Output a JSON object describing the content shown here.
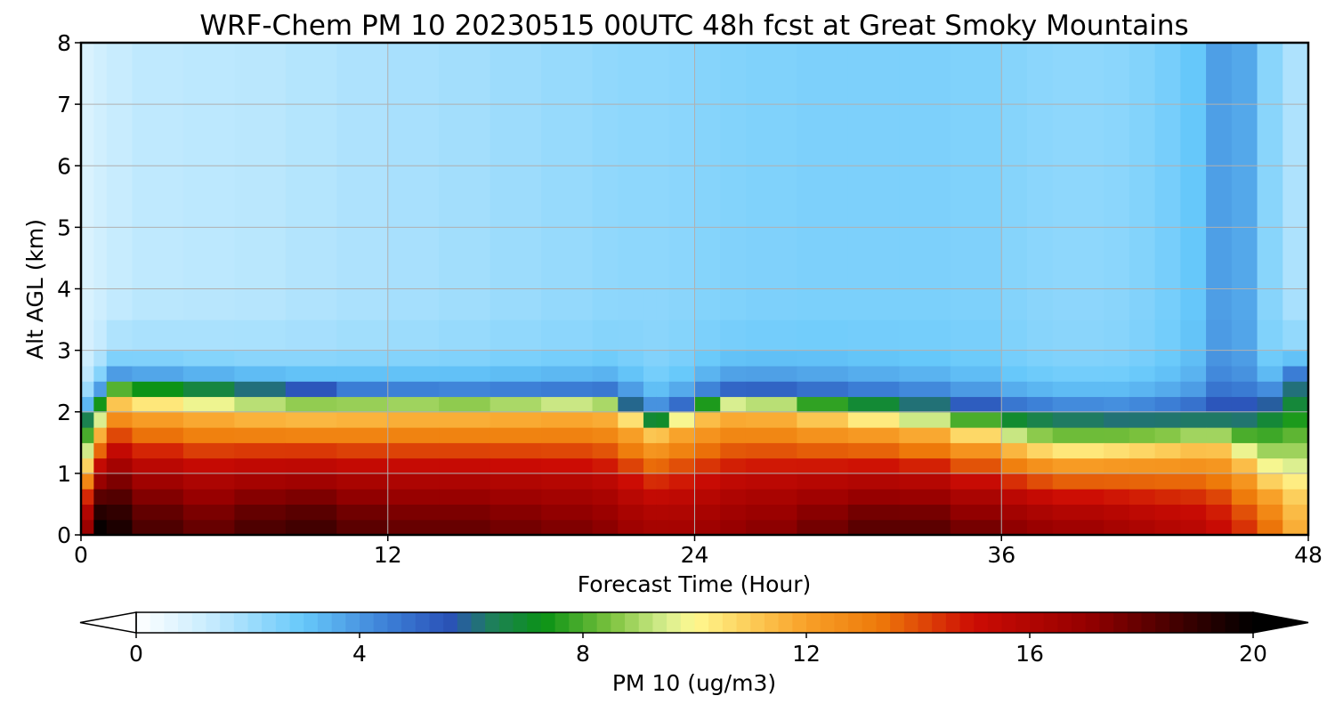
{
  "chart_data": {
    "type": "heatmap",
    "title": "WRF-Chem PM 10  20230515 00UTC 48h fcst at Great Smoky Mountains",
    "xlabel": "Forecast Time (Hour)",
    "ylabel": "Alt AGL (km)",
    "xlim": [
      0,
      48
    ],
    "ylim": [
      0,
      8
    ],
    "x_ticks": [
      "0",
      "12",
      "24",
      "36",
      "48"
    ],
    "y_ticks": [
      "0",
      "1",
      "2",
      "3",
      "4",
      "5",
      "6",
      "7",
      "8"
    ],
    "grid": true,
    "colorbar": {
      "label": "PM 10  (ug/m3)",
      "range": [
        0,
        20
      ],
      "ticks": [
        "0",
        "4",
        "8",
        "12",
        "16",
        "20"
      ],
      "extend": "both",
      "position": "bottom"
    },
    "x": [
      0,
      0.5,
      1,
      2,
      4,
      6,
      8,
      10,
      12,
      14,
      16,
      18,
      20,
      21,
      22,
      22.5,
      23,
      24,
      25,
      26,
      28,
      30,
      32,
      34,
      36,
      37,
      38,
      40,
      41,
      42,
      43,
      44,
      45,
      46,
      47,
      48
    ],
    "y": [
      0,
      0.25,
      0.5,
      0.75,
      1,
      1.25,
      1.5,
      1.75,
      2,
      2.25,
      2.5,
      2.75,
      3,
      3.5,
      4,
      5,
      6,
      7,
      8
    ],
    "boundary_top_km": [
      2.0,
      2.1,
      2.6,
      2.55,
      2.5,
      2.45,
      2.4,
      2.35,
      2.35,
      2.3,
      2.3,
      2.3,
      2.3,
      2.3,
      2.0,
      1.9,
      2.0,
      2.15,
      2.3,
      2.35,
      2.3,
      2.25,
      2.2,
      2.15,
      2.05,
      2.0,
      2.0,
      1.95,
      1.95,
      1.95,
      1.95,
      1.95,
      1.95,
      2.0,
      2.4,
      2.8
    ],
    "mixed_layer_top_km": [
      1.0,
      1.2,
      2.2,
      2.1,
      2.05,
      2.0,
      1.95,
      1.95,
      2.0,
      2.0,
      2.0,
      2.05,
      2.05,
      2.0,
      1.7,
      1.6,
      1.75,
      1.9,
      2.0,
      2.1,
      1.95,
      1.85,
      1.8,
      1.7,
      1.5,
      1.4,
      1.3,
      1.3,
      1.35,
      1.35,
      1.4,
      1.45,
      1.4,
      1.0,
      0.7,
      0.5
    ],
    "surface_max_ugm3": [
      14,
      20,
      20,
      19,
      18,
      18,
      19,
      18.5,
      18,
      18,
      18,
      17.5,
      17.5,
      17,
      16.5,
      16.5,
      16.5,
      16.5,
      17,
      17,
      17.5,
      18,
      18.5,
      18,
      17.5,
      17,
      17,
      16.5,
      16.5,
      16,
      16,
      15.5,
      15,
      14,
      13,
      10.5
    ],
    "upper_background_ugm3": [
      0.8,
      1.0,
      1.2,
      1.4,
      1.5,
      1.5,
      1.6,
      1.7,
      1.8,
      1.9,
      2.0,
      2.1,
      2.2,
      2.3,
      2.3,
      2.3,
      2.3,
      2.4,
      2.5,
      2.5,
      2.6,
      2.6,
      2.6,
      2.6,
      2.5,
      2.4,
      2.3,
      2.3,
      2.4,
      2.6,
      2.8,
      3.2,
      4.5,
      2.8,
      2.0,
      1.5
    ]
  }
}
